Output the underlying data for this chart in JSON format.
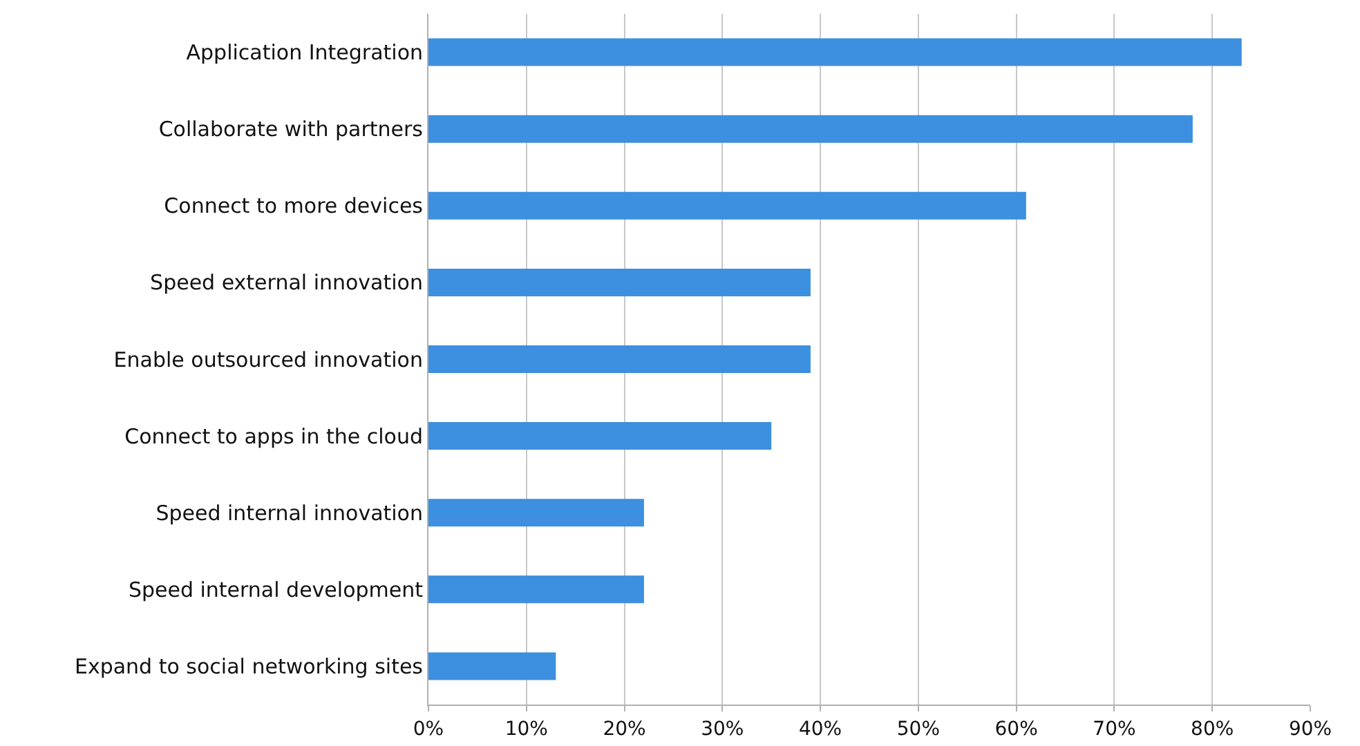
{
  "chart_data": {
    "type": "bar",
    "orientation": "horizontal",
    "categories": [
      "Application Integration",
      "Collaborate with partners",
      "Connect to more devices",
      "Speed external innovation",
      "Enable outsourced innovation",
      "Connect to apps in the cloud",
      "Speed internal innovation",
      "Speed internal development",
      "Expand to social networking sites"
    ],
    "values": [
      83,
      78,
      61,
      39,
      39,
      35,
      22,
      22,
      13
    ],
    "color": "#3d8fdf",
    "xlim": [
      0,
      90
    ],
    "xticks": [
      {
        "value": 0,
        "label": "0%"
      },
      {
        "value": 10,
        "label": "10%"
      },
      {
        "value": 20,
        "label": "20%"
      },
      {
        "value": 30,
        "label": "30%"
      },
      {
        "value": 40,
        "label": "40%"
      },
      {
        "value": 50,
        "label": "50%"
      },
      {
        "value": 60,
        "label": "60%"
      },
      {
        "value": 70,
        "label": "70%"
      },
      {
        "value": 80,
        "label": "80%"
      },
      {
        "value": 90,
        "label": "90%"
      }
    ],
    "grid": "x"
  }
}
